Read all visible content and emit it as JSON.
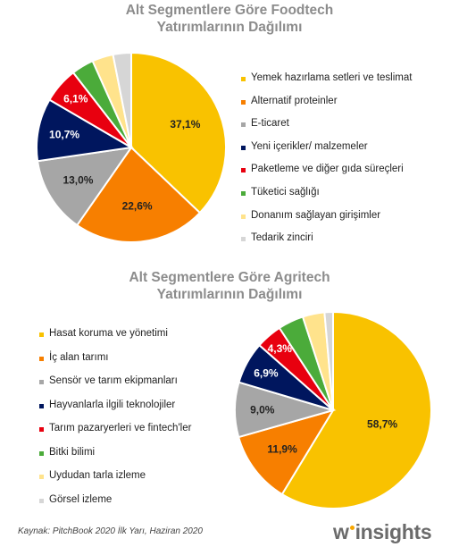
{
  "colors": {
    "palette": [
      "#f9c200",
      "#f77f00",
      "#a6a6a6",
      "#00165e",
      "#e8000f",
      "#4bab3a",
      "#ffe38c",
      "#d6d6d6"
    ]
  },
  "chart_data": [
    {
      "type": "pie",
      "title": [
        "Alt Segmentlere Göre Foodtech",
        "Yatırımlarının Dağılımı"
      ],
      "categories": [
        "Yemek hazırlama setleri ve teslimat",
        "Alternatif proteinler",
        "E-ticaret",
        "Yeni içerikler/ malzemeler",
        "Paketleme ve diğer gıda süreçleri",
        "Tüketici sağlığı",
        "Donanım sağlayan girişimler",
        "Tedarik zinciri"
      ],
      "values": [
        37.1,
        22.6,
        13.0,
        10.7,
        6.1,
        3.8,
        3.6,
        3.1
      ],
      "labels": [
        "37,1%",
        "22,6%",
        "13,0%",
        "10,7%",
        "6,1%",
        "",
        "",
        ""
      ],
      "legend": "right"
    },
    {
      "type": "pie",
      "title": [
        "Alt Segmentlere Göre Agritech",
        "Yatırımlarının Dağılımı"
      ],
      "categories": [
        "Hasat koruma ve yönetimi",
        "İç alan tarımı",
        "Sensör ve tarım ekipmanları",
        "Hayvanlarla ilgili teknolojiler",
        "Tarım pazaryerleri ve fintech'ler",
        "Bitki bilimi",
        "Uydudan tarla izleme",
        "Görsel izleme"
      ],
      "values": [
        58.7,
        11.9,
        9.0,
        6.9,
        4.3,
        4.2,
        3.6,
        1.4
      ],
      "labels": [
        "58,7%",
        "11,9%",
        "9,0%",
        "6,9%",
        "4,3%",
        "",
        "",
        ""
      ],
      "legend": "left"
    }
  ],
  "footer": {
    "source": "Kaynak: PitchBook 2020 İlk Yarı, Haziran 2020",
    "logo_w": "w",
    "logo_text": "insights"
  }
}
